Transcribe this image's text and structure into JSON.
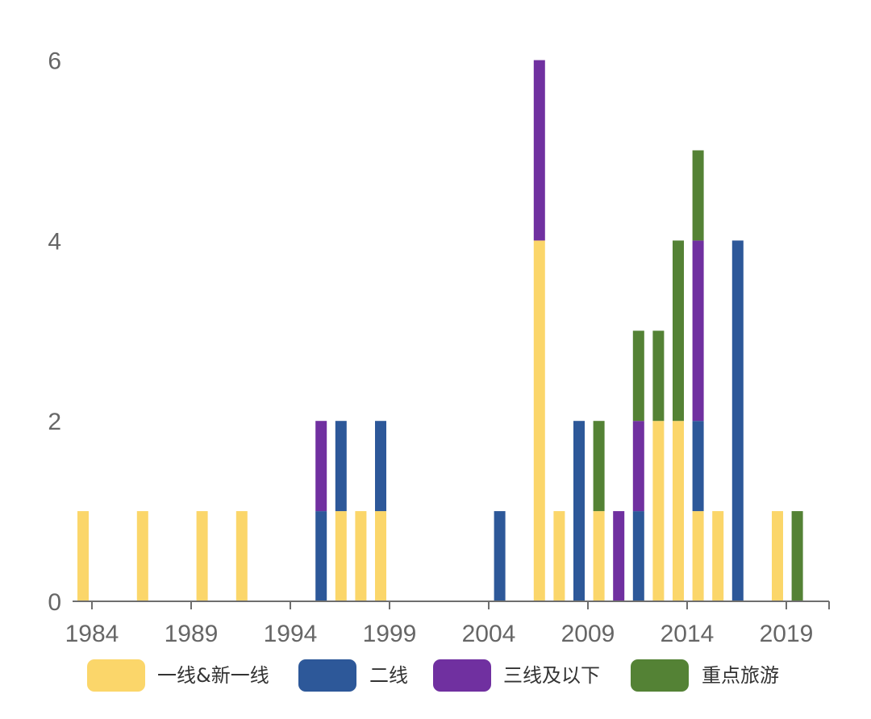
{
  "chart_data": {
    "type": "bar",
    "stacked": true,
    "x_start": 1984,
    "x_end": 2021,
    "x_ticks": [
      "1984",
      "1989",
      "1994",
      "1999",
      "2004",
      "2009",
      "2014",
      "2019"
    ],
    "y_ticks": [
      "0",
      "2",
      "4",
      "6"
    ],
    "ylim": [
      0,
      6
    ],
    "grid": false,
    "legend_position": "bottom",
    "series": [
      {
        "name": "一线&新一线",
        "color": "#FBD66A",
        "points": [
          {
            "year": 1984,
            "value": 1
          },
          {
            "year": 1987,
            "value": 1
          },
          {
            "year": 1990,
            "value": 1
          },
          {
            "year": 1992,
            "value": 1
          },
          {
            "year": 1997,
            "value": 1
          },
          {
            "year": 1998,
            "value": 1
          },
          {
            "year": 1999,
            "value": 1
          },
          {
            "year": 2007,
            "value": 4
          },
          {
            "year": 2008,
            "value": 1
          },
          {
            "year": 2010,
            "value": 1
          },
          {
            "year": 2013,
            "value": 2
          },
          {
            "year": 2014,
            "value": 2
          },
          {
            "year": 2015,
            "value": 1
          },
          {
            "year": 2016,
            "value": 1
          },
          {
            "year": 2019,
            "value": 1
          }
        ]
      },
      {
        "name": "二线",
        "color": "#2D5899",
        "points": [
          {
            "year": 1996,
            "value": 1
          },
          {
            "year": 1997,
            "value": 1
          },
          {
            "year": 1999,
            "value": 1
          },
          {
            "year": 2005,
            "value": 1
          },
          {
            "year": 2009,
            "value": 2
          },
          {
            "year": 2012,
            "value": 1
          },
          {
            "year": 2015,
            "value": 1
          },
          {
            "year": 2017,
            "value": 4
          }
        ]
      },
      {
        "name": "三线及以下",
        "color": "#7030A0",
        "points": [
          {
            "year": 1996,
            "value": 1
          },
          {
            "year": 2007,
            "value": 2
          },
          {
            "year": 2011,
            "value": 1
          },
          {
            "year": 2012,
            "value": 1
          },
          {
            "year": 2015,
            "value": 2
          }
        ]
      },
      {
        "name": "重点旅游",
        "color": "#548235",
        "points": [
          {
            "year": 2010,
            "value": 1
          },
          {
            "year": 2012,
            "value": 1
          },
          {
            "year": 2013,
            "value": 1
          },
          {
            "year": 2014,
            "value": 2
          },
          {
            "year": 2015,
            "value": 1
          },
          {
            "year": 2020,
            "value": 1
          }
        ]
      }
    ]
  }
}
